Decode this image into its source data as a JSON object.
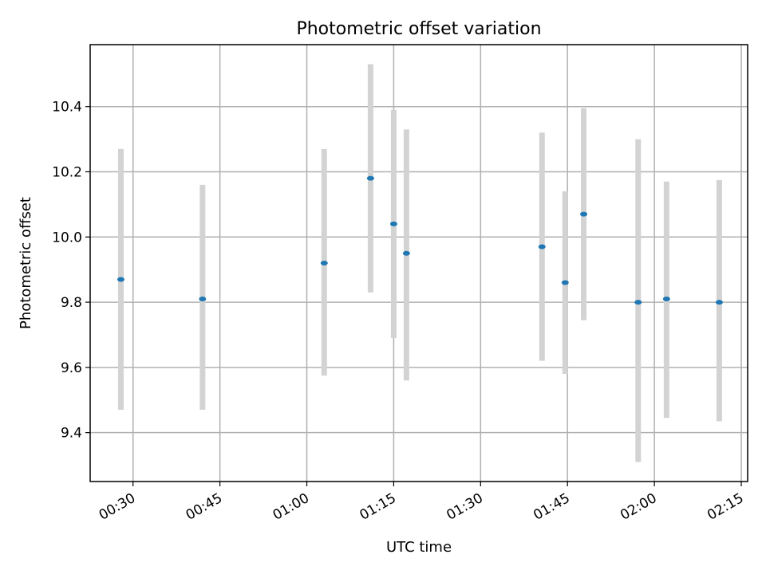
{
  "chart_data": {
    "type": "scatter",
    "title": "Photometric offset variation",
    "xlabel": "UTC time",
    "ylabel": "Photometric offset",
    "x_tick_labels": [
      "00:30",
      "00:45",
      "01:00",
      "01:15",
      "01:30",
      "01:45",
      "02:00",
      "02:15"
    ],
    "y_tick_labels": [
      "9.4",
      "9.6",
      "9.8",
      "10.0",
      "10.2",
      "10.4"
    ],
    "xlim": [
      "00:22.6",
      "02:16.1"
    ],
    "ylim": [
      9.25,
      10.59
    ],
    "grid": true,
    "colors": {
      "points": "#1f77b4",
      "error_bars": "#d3d3d3"
    },
    "points": [
      {
        "x": "00:27.9",
        "y": 9.87,
        "y_low": 9.47,
        "y_high": 10.27
      },
      {
        "x": "00:42.0",
        "y": 9.81,
        "y_low": 9.47,
        "y_high": 10.16
      },
      {
        "x": "01:03.0",
        "y": 9.92,
        "y_low": 9.575,
        "y_high": 10.27
      },
      {
        "x": "01:11.0",
        "y": 10.18,
        "y_low": 9.83,
        "y_high": 10.53
      },
      {
        "x": "01:15.0",
        "y": 10.04,
        "y_low": 9.69,
        "y_high": 10.39
      },
      {
        "x": "01:17.2",
        "y": 9.95,
        "y_low": 9.56,
        "y_high": 10.33
      },
      {
        "x": "01:40.6",
        "y": 9.97,
        "y_low": 9.62,
        "y_high": 10.32
      },
      {
        "x": "01:44.6",
        "y": 9.86,
        "y_low": 9.58,
        "y_high": 10.14
      },
      {
        "x": "01:47.8",
        "y": 10.07,
        "y_low": 9.745,
        "y_high": 10.395
      },
      {
        "x": "01:57.2",
        "y": 9.8,
        "y_low": 9.31,
        "y_high": 10.3
      },
      {
        "x": "02:02.1",
        "y": 9.81,
        "y_low": 9.445,
        "y_high": 10.17
      },
      {
        "x": "02:11.2",
        "y": 9.8,
        "y_low": 9.435,
        "y_high": 10.175
      }
    ]
  }
}
